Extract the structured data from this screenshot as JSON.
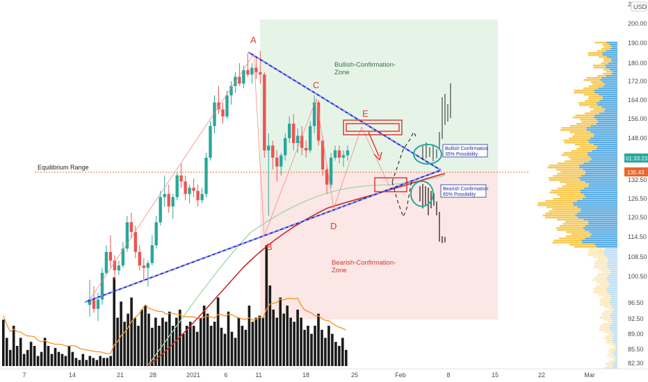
{
  "chart_data": {
    "type": "candlestick",
    "currency": "USD",
    "time_labels": [
      "7",
      "14",
      "21",
      "28",
      "2021",
      "6",
      "11",
      "18",
      "25",
      "Feb",
      "8",
      "15",
      "22",
      "Mar"
    ],
    "price_ticks": [
      "200.00",
      "190.00",
      "180.00",
      "172.00",
      "164.00",
      "156.00",
      "148.00",
      "140.00",
      "132.50",
      "126.50",
      "120.50",
      "114.50",
      "108.50",
      "100.50",
      "96.50",
      "92.50",
      "89.00",
      "85.50",
      "82.30"
    ],
    "top_edge_label": "2",
    "last_price_tag": "01:33:23",
    "equilibrium_tag": "135.43",
    "colors": {
      "up": "#2aa79b",
      "down": "#ef5350",
      "triangle": "#1a2ad4",
      "bullish_zone": "#e6f4e8",
      "bearish_zone": "#fbe7e5",
      "annotation": "#e0392f",
      "volume": "#1a1a1a",
      "volume_ma": "#f7931e",
      "sma_green": "#9bd7a9",
      "sma_red": "#c62828",
      "profile_blue": "#4aa3df",
      "profile_orange": "#f6c342"
    },
    "annotations": {
      "pattern_points": [
        "A",
        "B",
        "C",
        "D",
        "E"
      ],
      "bullish_zone": [
        "Bullish-Confirmation-",
        "Zone"
      ],
      "bearish_zone": [
        "Bearish-Confirmation-",
        "Zone"
      ],
      "bullish_note": [
        "Bullish Confirmation",
        "35% Possibility"
      ],
      "bearish_note": [
        "Bearish Confirmation",
        "65% Possibility"
      ],
      "equilibrium": "Equilibrium Range"
    },
    "candles": [
      [
        96,
        100,
        93,
        97
      ],
      [
        97,
        99,
        94,
        95
      ],
      [
        95,
        98,
        92,
        97
      ],
      [
        97,
        104,
        96,
        102
      ],
      [
        102,
        112,
        101,
        110
      ],
      [
        110,
        115,
        104,
        107
      ],
      [
        107,
        109,
        100,
        103
      ],
      [
        103,
        107,
        101,
        105
      ],
      [
        105,
        113,
        104,
        111
      ],
      [
        111,
        121,
        110,
        119
      ],
      [
        119,
        122,
        114,
        116
      ],
      [
        116,
        118,
        108,
        110
      ],
      [
        110,
        112,
        103,
        105
      ],
      [
        105,
        108,
        100,
        104
      ],
      [
        104,
        107,
        99,
        106
      ],
      [
        106,
        115,
        105,
        112
      ],
      [
        112,
        121,
        111,
        119
      ],
      [
        119,
        129,
        118,
        127
      ],
      [
        127,
        134,
        124,
        128
      ],
      [
        128,
        131,
        122,
        124
      ],
      [
        124,
        128,
        120,
        127
      ],
      [
        127,
        135,
        126,
        134
      ],
      [
        134,
        138,
        130,
        132
      ],
      [
        132,
        134,
        126,
        128
      ],
      [
        128,
        131,
        125,
        130
      ],
      [
        130,
        133,
        127,
        129
      ],
      [
        129,
        131,
        124,
        126
      ],
      [
        126,
        130,
        125,
        128
      ],
      [
        128,
        142,
        127,
        140
      ],
      [
        140,
        155,
        139,
        153
      ],
      [
        153,
        166,
        150,
        163
      ],
      [
        163,
        170,
        158,
        160
      ],
      [
        160,
        163,
        154,
        157
      ],
      [
        157,
        168,
        156,
        166
      ],
      [
        166,
        172,
        162,
        170
      ],
      [
        170,
        176,
        167,
        174
      ],
      [
        174,
        180,
        170,
        171
      ],
      [
        171,
        179,
        169,
        177
      ],
      [
        177,
        185,
        174,
        175
      ],
      [
        175,
        180,
        171,
        178
      ],
      [
        178,
        183,
        173,
        176
      ],
      [
        176,
        186,
        171,
        175
      ],
      [
        175,
        176,
        140,
        143
      ],
      [
        143,
        150,
        121,
        145
      ],
      [
        145,
        147,
        136,
        140
      ],
      [
        140,
        143,
        132,
        137
      ],
      [
        137,
        142,
        134,
        141
      ],
      [
        141,
        150,
        139,
        148
      ],
      [
        148,
        157,
        146,
        154
      ],
      [
        154,
        158,
        143,
        146
      ],
      [
        146,
        152,
        142,
        149
      ],
      [
        149,
        153,
        141,
        144
      ],
      [
        144,
        147,
        140,
        143
      ],
      [
        143,
        155,
        142,
        153
      ],
      [
        153,
        166,
        150,
        163
      ],
      [
        163,
        164,
        145,
        147
      ],
      [
        147,
        149,
        134,
        136
      ],
      [
        136,
        138,
        128,
        131
      ],
      [
        131,
        142,
        130,
        140
      ],
      [
        140,
        145,
        139,
        143
      ],
      [
        143,
        145,
        138,
        140
      ],
      [
        140,
        143,
        137,
        141
      ],
      [
        141,
        145,
        139,
        143
      ]
    ],
    "volume": [
      0.23,
      0.14,
      0.08,
      0.2,
      0.1,
      0.14,
      0.06,
      0.08,
      0.12,
      0.1,
      0.05,
      0.07,
      0.14,
      0.1,
      0.06,
      0.09,
      0.07,
      0.06,
      0.05,
      0.1,
      0.07,
      0.04,
      0.03,
      0.06,
      0.03,
      0.05,
      0.04,
      0.03,
      0.05,
      0.04,
      0.04,
      0.05,
      0.44,
      0.24,
      0.32,
      0.22,
      0.26,
      0.34,
      0.24,
      0.2,
      0.28,
      0.3,
      0.26,
      0.19,
      0.24,
      0.2,
      0.24,
      0.22,
      0.27,
      0.2,
      0.24,
      0.28,
      0.16,
      0.2,
      0.22,
      0.2,
      0.17,
      0.24,
      0.3,
      0.26,
      0.2,
      0.22,
      0.34,
      0.19,
      0.16,
      0.27,
      0.17,
      0.14,
      0.24,
      0.2,
      0.18,
      0.3,
      0.22,
      0.24,
      0.25,
      0.24,
      0.6,
      0.4,
      0.28,
      0.24,
      0.34,
      0.26,
      0.3,
      0.24,
      0.22,
      0.28,
      0.24,
      0.18,
      0.2,
      0.16,
      0.2,
      0.26,
      0.18,
      0.14,
      0.2,
      0.16,
      0.12,
      0.1,
      0.14,
      0.08
    ]
  }
}
